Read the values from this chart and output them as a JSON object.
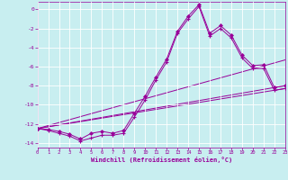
{
  "xlabel": "Windchill (Refroidissement éolien,°C)",
  "xlim": [
    0,
    23
  ],
  "ylim": [
    -14.5,
    0.8
  ],
  "xticks": [
    0,
    1,
    2,
    3,
    4,
    5,
    6,
    7,
    8,
    9,
    10,
    11,
    12,
    13,
    14,
    15,
    16,
    17,
    18,
    19,
    20,
    21,
    22,
    23
  ],
  "yticks": [
    0,
    -2,
    -4,
    -6,
    -8,
    -10,
    -12,
    -14
  ],
  "background_color": "#c8eef0",
  "line_color": "#990099",
  "grid_color": "#ffffff",
  "line1_x": [
    0,
    1,
    2,
    3,
    4,
    5,
    6,
    7,
    8,
    9,
    10,
    11,
    12,
    13,
    14,
    15,
    16,
    17,
    18,
    19,
    20,
    21,
    22,
    23
  ],
  "line1_y": [
    -12.5,
    -12.7,
    -13.0,
    -13.3,
    -13.8,
    -13.5,
    -13.2,
    -13.2,
    -13.0,
    -11.3,
    -9.5,
    -7.4,
    -5.5,
    -2.5,
    -1.0,
    0.3,
    -2.8,
    -2.0,
    -3.0,
    -5.1,
    -6.2,
    -6.2,
    -8.5,
    -8.3
  ],
  "line2_x": [
    0,
    1,
    2,
    3,
    4,
    5,
    6,
    7,
    8,
    9,
    10,
    11,
    12,
    13,
    14,
    15,
    16,
    17,
    18,
    19,
    20,
    21,
    22,
    23
  ],
  "line2_y": [
    -12.5,
    -12.6,
    -12.8,
    -13.1,
    -13.6,
    -13.0,
    -12.8,
    -13.0,
    -12.7,
    -10.9,
    -9.1,
    -7.1,
    -5.2,
    -2.3,
    -0.7,
    0.5,
    -2.5,
    -1.7,
    -2.7,
    -4.8,
    -5.9,
    -5.8,
    -8.2,
    -8.0
  ],
  "line3_x": [
    0,
    23
  ],
  "line3_y": [
    -12.5,
    -5.3
  ],
  "line4_x": [
    0,
    23
  ],
  "line4_y": [
    -12.5,
    -8.3
  ],
  "line5_x": [
    0,
    23
  ],
  "line5_y": [
    -12.5,
    -8.0
  ]
}
